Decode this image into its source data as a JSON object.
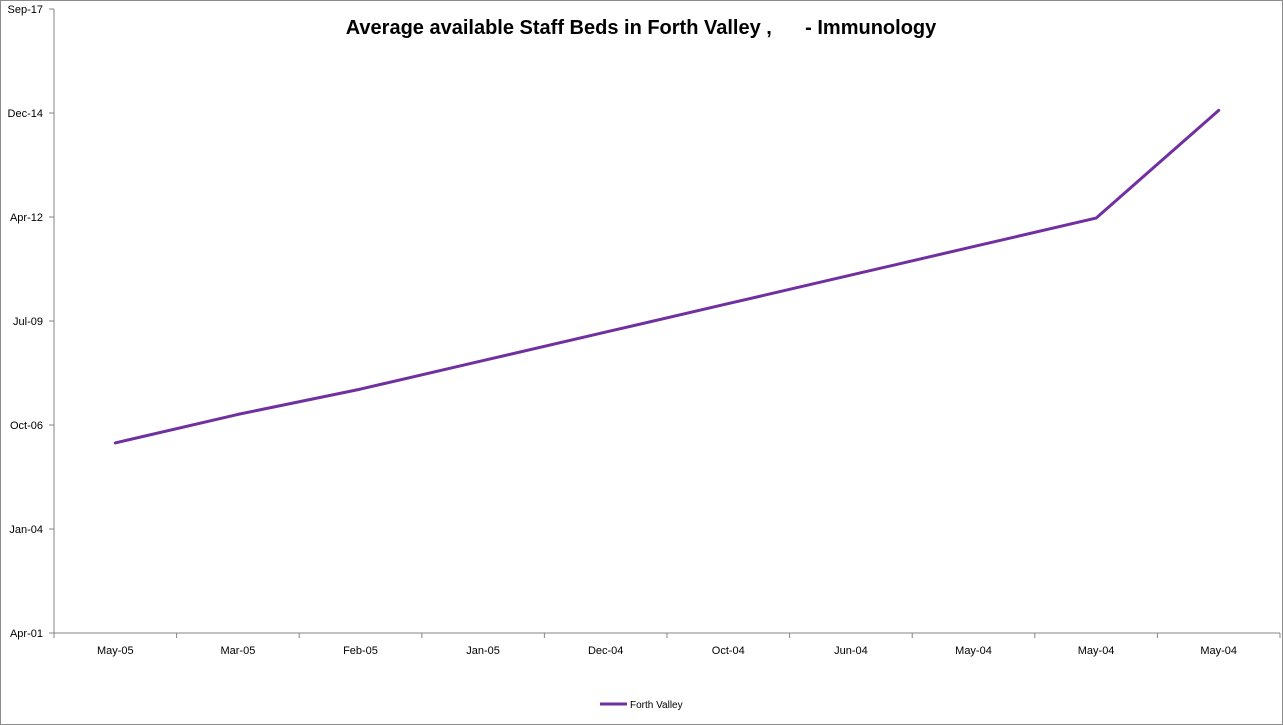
{
  "chart_data": {
    "type": "line",
    "title": "Average available Staff Beds in Forth Valley ,      - Immunology",
    "xlabel": "",
    "ylabel": "",
    "categories": [
      "May-05",
      "Mar-05",
      "Feb-05",
      "Jan-05",
      "Dec-04",
      "Oct-04",
      "Jun-04",
      "May-04",
      "May-04",
      "May-04"
    ],
    "y_tick_labels": [
      "Apr-01",
      "Jan-04",
      "Oct-06",
      "Jul-09",
      "Apr-12",
      "Dec-14",
      "Sep-17"
    ],
    "series": [
      {
        "name": "Forth Valley",
        "color": "#7030a0",
        "values": [
          "2006-04",
          "2007-01",
          "2007-09",
          "2008-06",
          "2009-03",
          "2009-12",
          "2010-09",
          "2011-06",
          "2012-03",
          "2015-01"
        ]
      }
    ],
    "ylim": [
      "2001-04",
      "2017-09"
    ],
    "grid": false,
    "legend_position": "bottom"
  }
}
